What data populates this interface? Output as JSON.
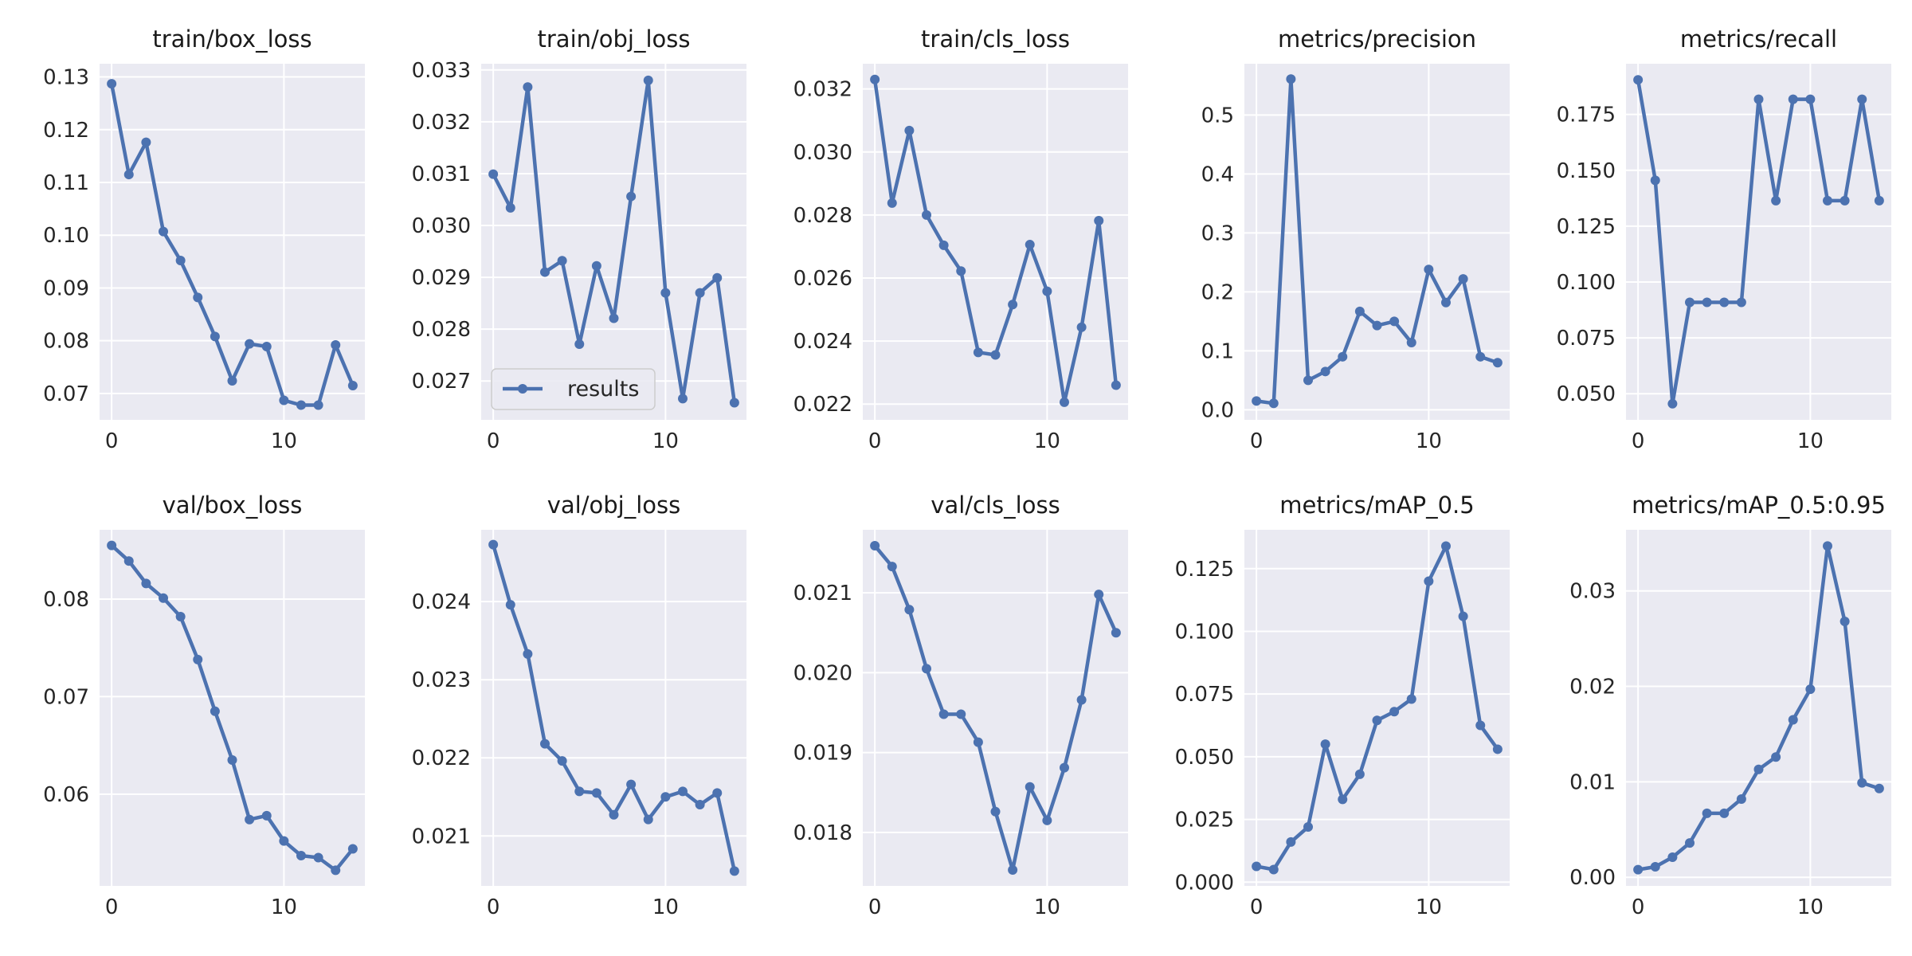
{
  "style": {
    "line_color": "#4c72b0",
    "panel_background": "#eaeaf2",
    "grid_color": "#ffffff",
    "text_color": "#262626"
  },
  "legend": {
    "label": "results",
    "panel": 1,
    "placement": "lower-left"
  },
  "chart_data": [
    {
      "type": "line",
      "title": "train/box_loss",
      "x": [
        0,
        1,
        2,
        3,
        4,
        5,
        6,
        7,
        8,
        9,
        10,
        11,
        12,
        13,
        14
      ],
      "series": [
        {
          "name": "results",
          "values": [
            0.1287,
            0.1115,
            0.1176,
            0.1007,
            0.0952,
            0.0882,
            0.0808,
            0.0724,
            0.0794,
            0.0789,
            0.0687,
            0.0678,
            0.0678,
            0.0792,
            0.0715
          ]
        }
      ],
      "xlim": [
        -0.7,
        14.7
      ],
      "ylim": [
        0.065,
        0.1325
      ],
      "xticks": [
        0,
        10
      ],
      "yticks": [
        0.07,
        0.08,
        0.09,
        0.1,
        0.11,
        0.12,
        0.13
      ],
      "ytick_labels": [
        "0.07",
        "0.08",
        "0.09",
        "0.10",
        "0.11",
        "0.12",
        "0.13"
      ],
      "grid": true
    },
    {
      "type": "line",
      "title": "train/obj_loss",
      "x": [
        0,
        1,
        2,
        3,
        4,
        5,
        6,
        7,
        8,
        9,
        10,
        11,
        12,
        13,
        14
      ],
      "series": [
        {
          "name": "results",
          "values": [
            0.03099,
            0.03034,
            0.03267,
            0.0291,
            0.02932,
            0.02771,
            0.02922,
            0.02821,
            0.03056,
            0.0328,
            0.0287,
            0.02666,
            0.0287,
            0.02899,
            0.02658
          ]
        }
      ],
      "xlim": [
        -0.7,
        14.7
      ],
      "ylim": [
        0.02625,
        0.03312
      ],
      "xticks": [
        0,
        10
      ],
      "yticks": [
        0.027,
        0.028,
        0.029,
        0.03,
        0.031,
        0.032,
        0.033
      ],
      "ytick_labels": [
        "0.027",
        "0.028",
        "0.029",
        "0.030",
        "0.031",
        "0.032",
        "0.033"
      ],
      "grid": true
    },
    {
      "type": "line",
      "title": "train/cls_loss",
      "x": [
        0,
        1,
        2,
        3,
        4,
        5,
        6,
        7,
        8,
        9,
        10,
        11,
        12,
        13,
        14
      ],
      "series": [
        {
          "name": "results",
          "values": [
            0.0323,
            0.02838,
            0.03068,
            0.028,
            0.02704,
            0.02622,
            0.02364,
            0.02356,
            0.02516,
            0.02706,
            0.02558,
            0.02206,
            0.02444,
            0.02782,
            0.0226
          ]
        }
      ],
      "xlim": [
        -0.7,
        14.7
      ],
      "ylim": [
        0.0215,
        0.0328
      ],
      "xticks": [
        0,
        10
      ],
      "yticks": [
        0.022,
        0.024,
        0.026,
        0.028,
        0.03,
        0.032
      ],
      "ytick_labels": [
        "0.022",
        "0.024",
        "0.026",
        "0.028",
        "0.030",
        "0.032"
      ],
      "grid": true
    },
    {
      "type": "line",
      "title": "metrics/precision",
      "x": [
        0,
        1,
        2,
        3,
        4,
        5,
        6,
        7,
        8,
        9,
        10,
        11,
        12,
        13,
        14
      ],
      "series": [
        {
          "name": "results",
          "values": [
            0.015,
            0.011,
            0.561,
            0.05,
            0.065,
            0.09,
            0.167,
            0.143,
            0.15,
            0.114,
            0.238,
            0.182,
            0.222,
            0.09,
            0.08
          ]
        }
      ],
      "xlim": [
        -0.7,
        14.7
      ],
      "ylim": [
        -0.017,
        0.587
      ],
      "xticks": [
        0,
        10
      ],
      "yticks": [
        0.0,
        0.1,
        0.2,
        0.3,
        0.4,
        0.5
      ],
      "ytick_labels": [
        "0.0",
        "0.1",
        "0.2",
        "0.3",
        "0.4",
        "0.5"
      ],
      "grid": true
    },
    {
      "type": "line",
      "title": "metrics/recall",
      "x": [
        0,
        1,
        2,
        3,
        4,
        5,
        6,
        7,
        8,
        9,
        10,
        11,
        12,
        13,
        14
      ],
      "series": [
        {
          "name": "results",
          "values": [
            0.1905,
            0.1455,
            0.0455,
            0.0909,
            0.0909,
            0.0909,
            0.0909,
            0.1818,
            0.1364,
            0.1818,
            0.1818,
            0.1364,
            0.1364,
            0.1818,
            0.1364
          ]
        }
      ],
      "xlim": [
        -0.7,
        14.7
      ],
      "ylim": [
        0.0383,
        0.1977
      ],
      "xticks": [
        0,
        10
      ],
      "yticks": [
        0.05,
        0.075,
        0.1,
        0.125,
        0.15,
        0.175
      ],
      "ytick_labels": [
        "0.050",
        "0.075",
        "0.100",
        "0.125",
        "0.150",
        "0.175"
      ],
      "grid": true
    },
    {
      "type": "line",
      "title": "val/box_loss",
      "x": [
        0,
        1,
        2,
        3,
        4,
        5,
        6,
        7,
        8,
        9,
        10,
        11,
        12,
        13,
        14
      ],
      "series": [
        {
          "name": "results",
          "values": [
            0.0855,
            0.0839,
            0.0816,
            0.0801,
            0.0782,
            0.0738,
            0.0685,
            0.0635,
            0.0574,
            0.0578,
            0.0552,
            0.0537,
            0.0535,
            0.0522,
            0.0544
          ]
        }
      ],
      "xlim": [
        -0.7,
        14.7
      ],
      "ylim": [
        0.0506,
        0.0871
      ],
      "xticks": [
        0,
        10
      ],
      "yticks": [
        0.06,
        0.07,
        0.08
      ],
      "ytick_labels": [
        "0.06",
        "0.07",
        "0.08"
      ],
      "grid": true
    },
    {
      "type": "line",
      "title": "val/obj_loss",
      "x": [
        0,
        1,
        2,
        3,
        4,
        5,
        6,
        7,
        8,
        9,
        10,
        11,
        12,
        13,
        14
      ],
      "series": [
        {
          "name": "results",
          "values": [
            0.02473,
            0.02396,
            0.02333,
            0.02218,
            0.02196,
            0.02157,
            0.02155,
            0.02127,
            0.02166,
            0.02121,
            0.0215,
            0.02157,
            0.0214,
            0.02155,
            0.02055
          ]
        }
      ],
      "xlim": [
        -0.7,
        14.7
      ],
      "ylim": [
        0.02036,
        0.02492
      ],
      "xticks": [
        0,
        10
      ],
      "yticks": [
        0.021,
        0.022,
        0.023,
        0.024
      ],
      "ytick_labels": [
        "0.021",
        "0.022",
        "0.023",
        "0.024"
      ],
      "grid": true
    },
    {
      "type": "line",
      "title": "val/cls_loss",
      "x": [
        0,
        1,
        2,
        3,
        4,
        5,
        6,
        7,
        8,
        9,
        10,
        11,
        12,
        13,
        14
      ],
      "series": [
        {
          "name": "results",
          "values": [
            0.02159,
            0.02133,
            0.02079,
            0.02005,
            0.01948,
            0.01948,
            0.01913,
            0.01826,
            0.01753,
            0.01857,
            0.01815,
            0.01881,
            0.01966,
            0.02098,
            0.0205
          ]
        }
      ],
      "xlim": [
        -0.7,
        14.7
      ],
      "ylim": [
        0.01733,
        0.02179
      ],
      "xticks": [
        0,
        10
      ],
      "yticks": [
        0.018,
        0.019,
        0.02,
        0.021
      ],
      "ytick_labels": [
        "0.018",
        "0.019",
        "0.020",
        "0.021"
      ],
      "grid": true
    },
    {
      "type": "line",
      "title": "metrics/mAP_0.5",
      "x": [
        0,
        1,
        2,
        3,
        4,
        5,
        6,
        7,
        8,
        9,
        10,
        11,
        12,
        13,
        14
      ],
      "series": [
        {
          "name": "results",
          "values": [
            0.0063,
            0.005,
            0.016,
            0.022,
            0.055,
            0.033,
            0.043,
            0.0645,
            0.068,
            0.073,
            0.12,
            0.134,
            0.106,
            0.0625,
            0.053
          ]
        }
      ],
      "xlim": [
        -0.7,
        14.7
      ],
      "ylim": [
        -0.0015,
        0.1405
      ],
      "xticks": [
        0,
        10
      ],
      "yticks": [
        0.0,
        0.025,
        0.05,
        0.075,
        0.1,
        0.125
      ],
      "ytick_labels": [
        "0.000",
        "0.025",
        "0.050",
        "0.075",
        "0.100",
        "0.125"
      ],
      "grid": true
    },
    {
      "type": "line",
      "title": "metrics/mAP_0.5:0.95",
      "x": [
        0,
        1,
        2,
        3,
        4,
        5,
        6,
        7,
        8,
        9,
        10,
        11,
        12,
        13,
        14
      ],
      "series": [
        {
          "name": "results",
          "values": [
            0.0008,
            0.0011,
            0.0021,
            0.0036,
            0.0067,
            0.0067,
            0.0082,
            0.0113,
            0.0126,
            0.0165,
            0.0197,
            0.0347,
            0.0268,
            0.0099,
            0.0093
          ]
        }
      ],
      "xlim": [
        -0.7,
        14.7
      ],
      "ylim": [
        -0.0009,
        0.0364
      ],
      "xticks": [
        0,
        10
      ],
      "yticks": [
        0.0,
        0.01,
        0.02,
        0.03
      ],
      "ytick_labels": [
        "0.00",
        "0.01",
        "0.02",
        "0.03"
      ],
      "grid": true
    }
  ]
}
